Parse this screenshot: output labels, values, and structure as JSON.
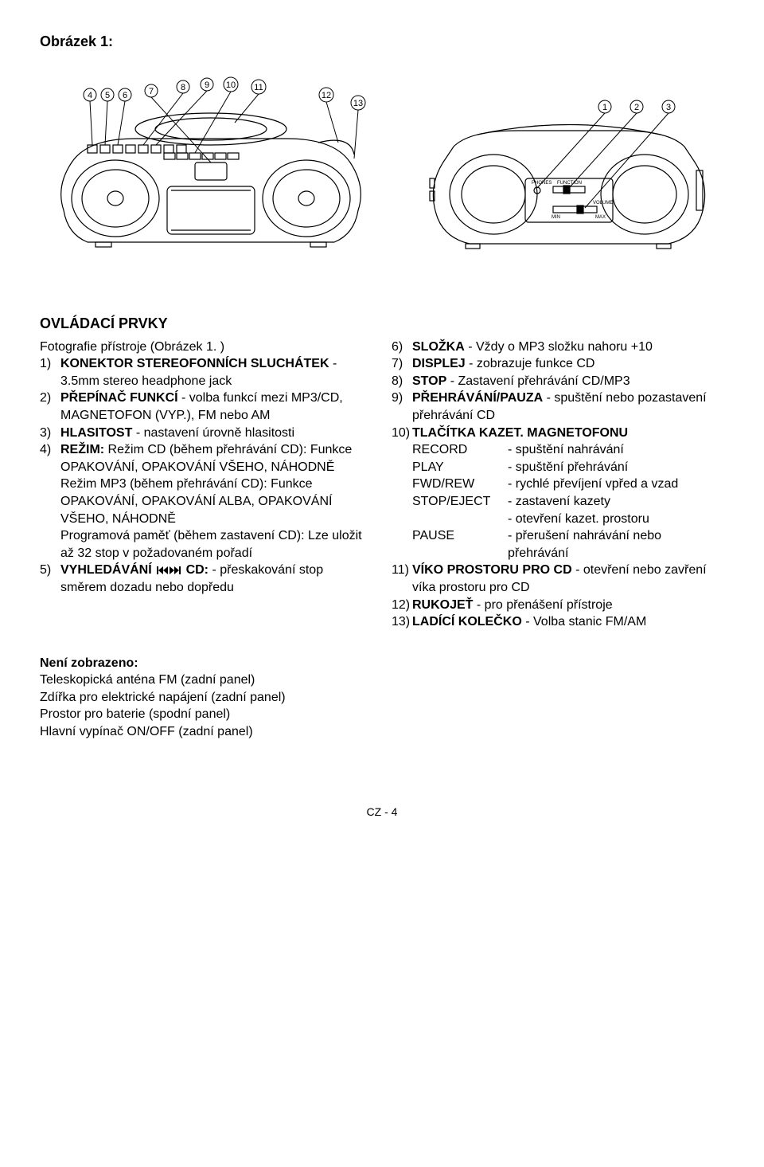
{
  "heading": "Obrázek 1:",
  "section_title": "OVLÁDACÍ PRVKY",
  "intro": "Fotografie přístroje (Obrázek 1. )",
  "left_items": [
    {
      "n": "1)",
      "body": [
        {
          "b": true,
          "t": "KONEKTOR STEREOFONNÍCH SLUCHÁTEK"
        },
        {
          "t": " - 3.5mm stereo headphone jack"
        }
      ]
    },
    {
      "n": "2)",
      "body": [
        {
          "b": true,
          "t": "PŘEPÍNAČ FUNKCÍ"
        },
        {
          "t": " - volba funkcí mezi MP3/CD, MAGNETOFON (VYP.), FM nebo AM"
        }
      ]
    },
    {
      "n": "3)",
      "body": [
        {
          "b": true,
          "t": "HLASITOST"
        },
        {
          "t": " - nastavení úrovně hlasitosti"
        }
      ]
    },
    {
      "n": "4)",
      "body": [
        {
          "b": true,
          "t": "REŽIM:"
        },
        {
          "t": " Režim CD (během přehrávání CD): Funkce OPAKOVÁNÍ, OPAKOVÁNÍ VŠEHO, NÁHODNĚ\nRežim MP3 (během přehrávání CD): Funkce OPAKOVÁNÍ, OPAKOVÁNÍ ALBA, OPAKOVÁNÍ VŠEHO, NÁHODNĚ\nProgramová paměť (během zastavení CD): Lze uložit až 32 stop v požadovaném pořadí"
        }
      ]
    },
    {
      "n": "5)",
      "body": [
        {
          "b": true,
          "t": "VYHLEDÁVÁNÍ "
        },
        {
          "icon": "seek-icons"
        },
        {
          "b": true,
          "t": " CD:"
        },
        {
          "t": " - přeskakování stop směrem dozadu nebo dopředu"
        }
      ]
    }
  ],
  "right_items": [
    {
      "n": "6)",
      "body": [
        {
          "b": true,
          "t": "SLOŽKA"
        },
        {
          "t": " -  Vždy o MP3 složku nahoru +10"
        }
      ]
    },
    {
      "n": "7)",
      "body": [
        {
          "b": true,
          "t": "DISPLEJ"
        },
        {
          "t": " - zobrazuje funkce CD"
        }
      ]
    },
    {
      "n": "8)",
      "body": [
        {
          "b": true,
          "t": "STOP"
        },
        {
          "t": " - Zastavení přehrávání CD/MP3"
        }
      ]
    },
    {
      "n": "9)",
      "body": [
        {
          "b": true,
          "t": "PŘEHRÁVÁNÍ/PAUZA"
        },
        {
          "t": " - spuštění nebo pozastavení přehrávání CD"
        }
      ]
    },
    {
      "n": "10)",
      "body": [
        {
          "b": true,
          "t": "TLAČÍTKA KAZET. MAGNETOFONU"
        }
      ],
      "tape": [
        {
          "k": "RECORD",
          "v": "- spuštění nahrávání"
        },
        {
          "k": "PLAY",
          "v": "- spuštění přehrávání"
        },
        {
          "k": "FWD/REW",
          "v": "- rychlé převíjení vpřed a vzad"
        },
        {
          "k": "STOP/EJECT",
          "v": "- zastavení kazety\n- otevření kazet. prostoru"
        },
        {
          "k": "PAUSE",
          "v": "- přerušení nahrávání nebo přehrávání"
        }
      ]
    },
    {
      "n": "11)",
      "body": [
        {
          "b": true,
          "t": "VÍKO PROSTORU PRO CD"
        },
        {
          "t": " - otevření nebo zavření víka prostoru pro CD"
        }
      ]
    },
    {
      "n": "12)",
      "body": [
        {
          "b": true,
          "t": "RUKOJEŤ"
        },
        {
          "t": " - pro přenášení přístroje"
        }
      ]
    },
    {
      "n": "13)",
      "body": [
        {
          "b": true,
          "t": "LADÍCÍ KOLEČKO"
        },
        {
          "t": " - Volba stanic FM/AM"
        }
      ]
    }
  ],
  "footnote_title": "Není zobrazeno:",
  "footnote_lines": [
    "Teleskopická anténa FM (zadní panel)",
    "Zdířka pro elektrické napájení (zadní panel)",
    "Prostor pro baterie (spodní panel)",
    "Hlavní vypínač ON/OFF (zadní panel)"
  ],
  "page_num": "CZ - 4",
  "diagram": {
    "front": {
      "callouts": [
        "4",
        "5",
        "6",
        "7",
        "8",
        "9",
        "10",
        "11",
        "12",
        "13"
      ],
      "panel_labels": []
    },
    "side": {
      "callouts": [
        "1",
        "2",
        "3"
      ],
      "panel_labels": [
        "PHONES",
        "FUNCTION",
        "VOLUME",
        "MIN",
        "MAX"
      ]
    },
    "colors": {
      "line": "#000000",
      "fill": "#ffffff"
    }
  }
}
